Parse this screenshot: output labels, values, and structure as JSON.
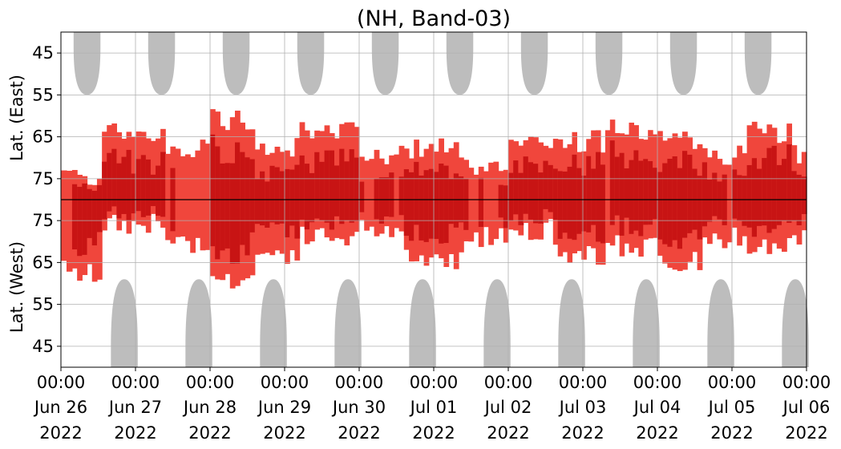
{
  "chart_data": {
    "type": "heatmap",
    "title": "(NH, Band-03)",
    "xlabel": "",
    "ylabel_top": "Lat. (East)",
    "ylabel_bottom": "Lat. (West)",
    "x_ticks": [
      {
        "l1": "00:00",
        "l2": "Jun 26",
        "l3": "2022"
      },
      {
        "l1": "00:00",
        "l2": "Jun 27",
        "l3": "2022"
      },
      {
        "l1": "00:00",
        "l2": "Jun 28",
        "l3": "2022"
      },
      {
        "l1": "00:00",
        "l2": "Jun 29",
        "l3": "2022"
      },
      {
        "l1": "00:00",
        "l2": "Jun 30",
        "l3": "2022"
      },
      {
        "l1": "00:00",
        "l2": "Jul 01",
        "l3": "2022"
      },
      {
        "l1": "00:00",
        "l2": "Jul 02",
        "l3": "2022"
      },
      {
        "l1": "00:00",
        "l2": "Jul 03",
        "l3": "2022"
      },
      {
        "l1": "00:00",
        "l2": "Jul 04",
        "l3": "2022"
      },
      {
        "l1": "00:00",
        "l2": "Jul 05",
        "l3": "2022"
      },
      {
        "l1": "00:00",
        "l2": "Jul 06",
        "l3": "2022"
      }
    ],
    "x_range_days": [
      0,
      10
    ],
    "y_axis": {
      "note": "folded latitude axis; top half East (lat decreasing upward to 40), bottom half West (lat decreasing downward to 40), equator-side 80 at center line",
      "east_ticks": [
        45,
        55,
        65,
        75
      ],
      "west_ticks": [
        75,
        65,
        55,
        45
      ],
      "range": [
        40,
        80,
        40
      ]
    },
    "grid": true,
    "colors": {
      "night_shade": "#bdbdbd",
      "activity_light": "#f0463c",
      "activity_dark": "#c81414",
      "center_line": "#000000"
    },
    "night_shade_east_centers_days": [
      0.35,
      1.35,
      2.35,
      3.35,
      4.35,
      5.35,
      6.35,
      7.35,
      8.35,
      9.35
    ],
    "night_shade_west_centers_days": [
      0.85,
      1.85,
      2.85,
      3.85,
      4.85,
      5.85,
      6.85,
      7.85,
      8.85,
      9.85
    ],
    "activity_segments": [
      {
        "start": 0.0,
        "end": 0.15,
        "east_top": 72,
        "west_top": 64,
        "level": 1
      },
      {
        "start": 0.15,
        "end": 0.55,
        "east_top": 73,
        "west_top": 61,
        "level": 2
      },
      {
        "start": 0.55,
        "end": 1.4,
        "east_top": 63,
        "west_top": 73,
        "level": 2
      },
      {
        "start": 1.4,
        "end": 2.0,
        "east_top": 67,
        "west_top": 68,
        "level": 1
      },
      {
        "start": 2.0,
        "end": 2.6,
        "east_top": 60,
        "west_top": 60,
        "level": 2
      },
      {
        "start": 2.6,
        "end": 3.2,
        "east_top": 66,
        "west_top": 66,
        "level": 2
      },
      {
        "start": 3.2,
        "end": 4.0,
        "east_top": 63,
        "west_top": 70,
        "level": 2
      },
      {
        "start": 4.0,
        "end": 4.6,
        "east_top": 68,
        "west_top": 72,
        "level": 1
      },
      {
        "start": 4.6,
        "end": 5.4,
        "east_top": 67,
        "west_top": 65,
        "level": 2
      },
      {
        "start": 5.4,
        "end": 6.0,
        "east_top": 72,
        "west_top": 70,
        "level": 1
      },
      {
        "start": 6.0,
        "end": 6.6,
        "east_top": 65,
        "west_top": 72,
        "level": 2
      },
      {
        "start": 6.6,
        "end": 7.3,
        "east_top": 65,
        "west_top": 66,
        "level": 2
      },
      {
        "start": 7.3,
        "end": 8.0,
        "east_top": 62,
        "west_top": 68,
        "level": 1
      },
      {
        "start": 8.0,
        "end": 8.6,
        "east_top": 65,
        "west_top": 64,
        "level": 2
      },
      {
        "start": 8.6,
        "end": 9.2,
        "east_top": 68,
        "west_top": 70,
        "level": 1
      },
      {
        "start": 9.2,
        "end": 9.8,
        "east_top": 63,
        "west_top": 68,
        "level": 2
      },
      {
        "start": 9.8,
        "end": 10.0,
        "east_top": 68,
        "west_top": 70,
        "level": 2
      }
    ]
  }
}
